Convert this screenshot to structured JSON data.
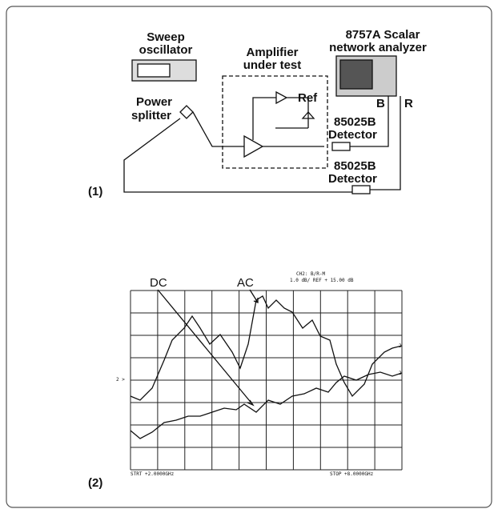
{
  "diagram": {
    "sweep_oscillator": [
      "Sweep",
      "oscillator"
    ],
    "amplifier": [
      "Amplifier",
      "under test"
    ],
    "analyzer": [
      "8757A Scalar",
      "network analyzer"
    ],
    "port_b": "B",
    "port_r": "R",
    "power_splitter": [
      "Power",
      "splitter"
    ],
    "ref": "Ref",
    "detector_1": [
      "85025B",
      "Detector"
    ],
    "detector_2": [
      "85025B",
      "Detector"
    ],
    "label": "(1)"
  },
  "display": {
    "label": "(2)",
    "dc": "DC",
    "ac": "AC",
    "header": [
      "CH2: B/R-M",
      "1.0 dB/  REF  + 15.00 dB"
    ],
    "ref_marker": "2 >",
    "trace_marker": "2",
    "start": "STRT  +2.0000GHz",
    "stop": "STOP  +8.0000GHz"
  }
}
